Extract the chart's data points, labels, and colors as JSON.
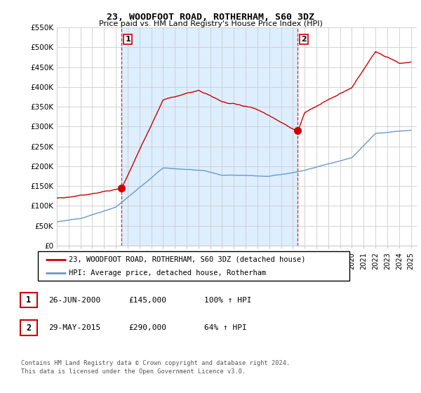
{
  "title": "23, WOODFOOT ROAD, ROTHERHAM, S60 3DZ",
  "subtitle": "Price paid vs. HM Land Registry's House Price Index (HPI)",
  "ylabel_ticks": [
    "£0",
    "£50K",
    "£100K",
    "£150K",
    "£200K",
    "£250K",
    "£300K",
    "£350K",
    "£400K",
    "£450K",
    "£500K",
    "£550K"
  ],
  "ylim": [
    0,
    550000
  ],
  "xlim_start": 1995.0,
  "xlim_end": 2025.5,
  "sale1_x": 2000.48,
  "sale1_y": 145000,
  "sale2_x": 2015.41,
  "sale2_y": 290000,
  "legend_line1": "23, WOODFOOT ROAD, ROTHERHAM, S60 3DZ (detached house)",
  "legend_line2": "HPI: Average price, detached house, Rotherham",
  "table_row1_num": "1",
  "table_row1_date": "26-JUN-2000",
  "table_row1_price": "£145,000",
  "table_row1_hpi": "100% ↑ HPI",
  "table_row2_num": "2",
  "table_row2_date": "29-MAY-2015",
  "table_row2_price": "£290,000",
  "table_row2_hpi": "64% ↑ HPI",
  "footnote1": "Contains HM Land Registry data © Crown copyright and database right 2024.",
  "footnote2": "This data is licensed under the Open Government Licence v3.0.",
  "red_color": "#cc0000",
  "blue_color": "#6699cc",
  "fill_color": "#ddeeff",
  "bg_color": "#ffffff",
  "grid_color": "#cccccc"
}
